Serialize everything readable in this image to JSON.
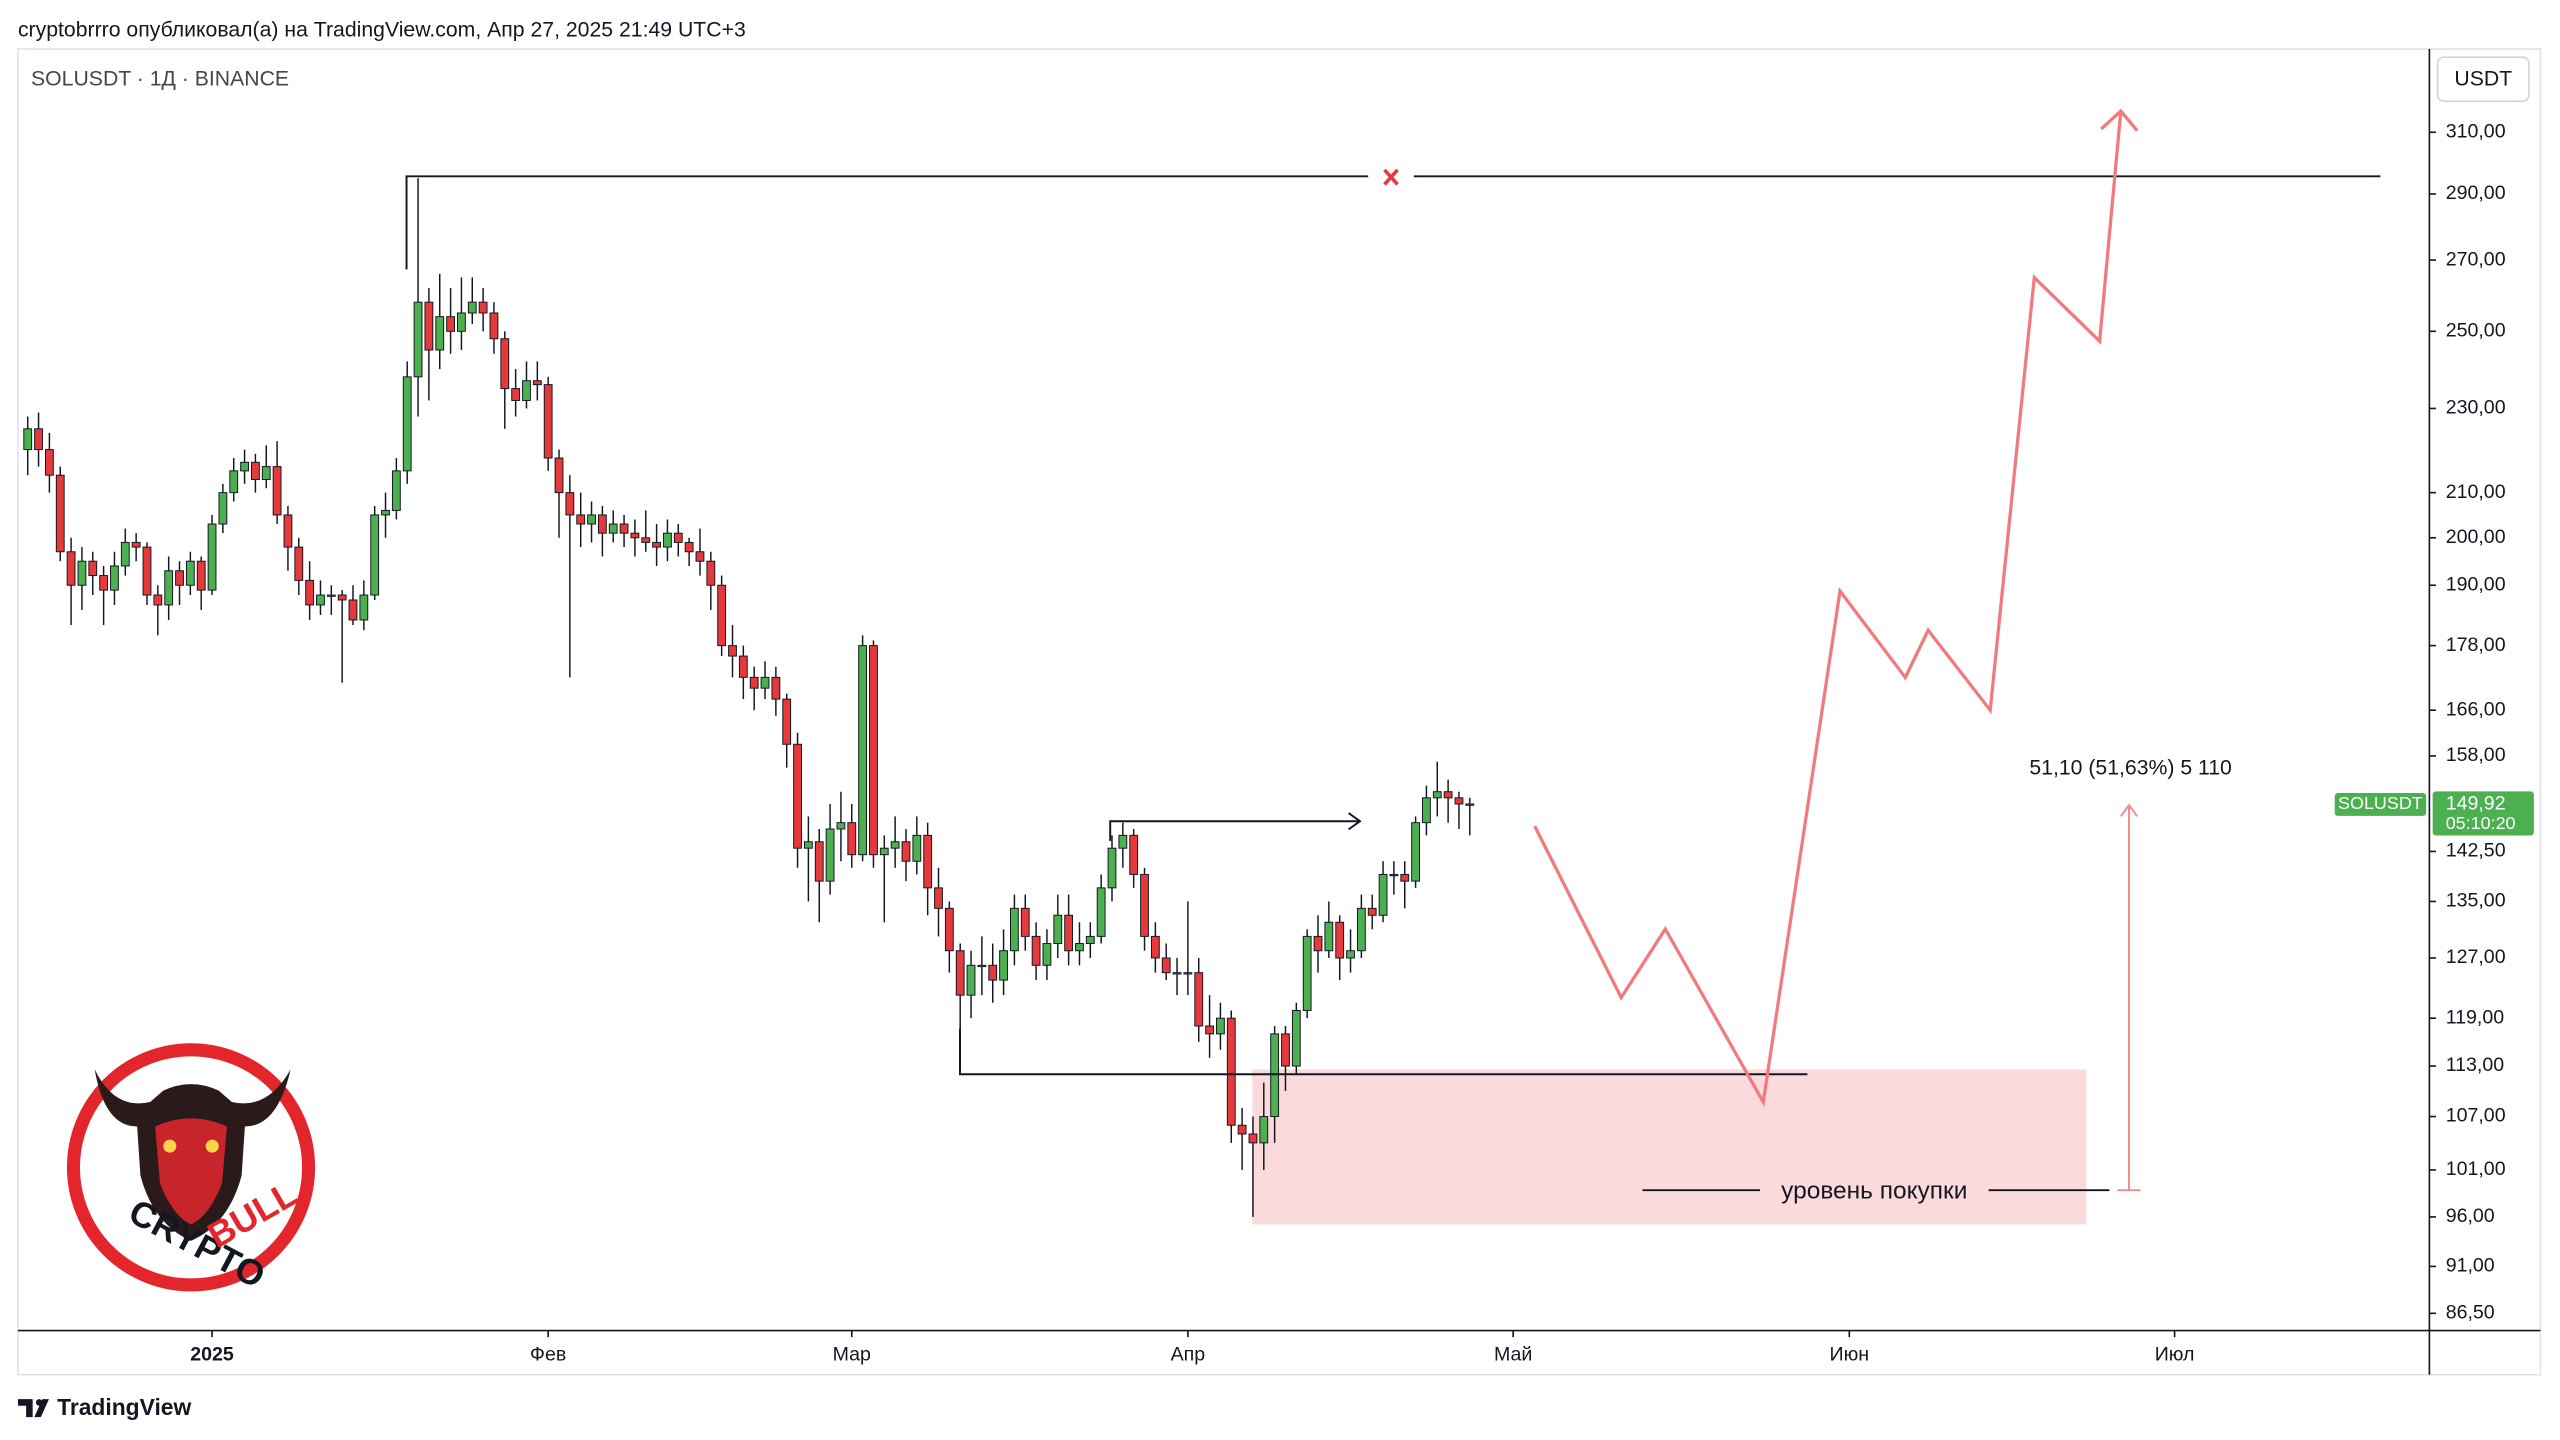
{
  "header": "cryptobrrro опубликовал(а) на TradingView.com, Апр 27, 2025 21:49 UTC+3",
  "footer": "TradingView",
  "logo": {
    "top": "CRYPTO",
    "bottom": "BULL"
  },
  "chart_data": {
    "type": "candlestick",
    "title": "SOLUSDT · 1Д · BINANCE",
    "currency": "USDT",
    "log_scale": true,
    "up_color": "#4caf50",
    "down_color": "#e5393b",
    "ylim": [
      84.9,
      339.2
    ],
    "yticks": [
      {
        "value": 310,
        "label": "310,00"
      },
      {
        "value": 290,
        "label": "290,00"
      },
      {
        "value": 270,
        "label": "270,00"
      },
      {
        "value": 250,
        "label": "250,00"
      },
      {
        "value": 230,
        "label": "230,00"
      },
      {
        "value": 210,
        "label": "210,00"
      },
      {
        "value": 200,
        "label": "200,00"
      },
      {
        "value": 190,
        "label": "190,00"
      },
      {
        "value": 178,
        "label": "178,00"
      },
      {
        "value": 166,
        "label": "166,00"
      },
      {
        "value": 158,
        "label": "158,00"
      },
      {
        "value": 142.5,
        "label": "142,50"
      },
      {
        "value": 135,
        "label": "135,00"
      },
      {
        "value": 127,
        "label": "127,00"
      },
      {
        "value": 119,
        "label": "119,00"
      },
      {
        "value": 113,
        "label": "113,00"
      },
      {
        "value": 107,
        "label": "107,00"
      },
      {
        "value": 101,
        "label": "101,00"
      },
      {
        "value": 96,
        "label": "96,00"
      },
      {
        "value": 91,
        "label": "91,00"
      },
      {
        "value": 86.5,
        "label": "86,50"
      }
    ],
    "xlim": [
      -17.9,
      204.5
    ],
    "xticks": [
      {
        "value": 0,
        "label": "2025"
      },
      {
        "value": 31,
        "label": "Фев"
      },
      {
        "value": 59,
        "label": "Мар"
      },
      {
        "value": 90,
        "label": "Апр"
      },
      {
        "value": 120,
        "label": "Май"
      },
      {
        "value": 151,
        "label": "Июн"
      },
      {
        "value": 181,
        "label": "Июл"
      }
    ],
    "x": [
      -17,
      -16,
      -15,
      -14,
      -13,
      -12,
      -11,
      -10,
      -9,
      -8,
      -7,
      -6,
      -5,
      -4,
      -3,
      -2,
      -1,
      0,
      1,
      2,
      3,
      4,
      5,
      6,
      7,
      8,
      9,
      10,
      11,
      12,
      13,
      14,
      15,
      16,
      17,
      18,
      19,
      20,
      21,
      22,
      23,
      24,
      25,
      26,
      27,
      28,
      29,
      30,
      31,
      32,
      33,
      34,
      35,
      36,
      37,
      38,
      39,
      40,
      41,
      42,
      43,
      44,
      45,
      46,
      47,
      48,
      49,
      50,
      51,
      52,
      53,
      54,
      55,
      56,
      57,
      58,
      59,
      60,
      61,
      62,
      63,
      64,
      65,
      66,
      67,
      68,
      69,
      70,
      71,
      72,
      73,
      74,
      75,
      76,
      77,
      78,
      79,
      80,
      81,
      82,
      83,
      84,
      85,
      86,
      87,
      88,
      89,
      90,
      91,
      92,
      93,
      94,
      95,
      96,
      97,
      98,
      99,
      100,
      101,
      102,
      103,
      104,
      105,
      106,
      107,
      108,
      109,
      110,
      111,
      112,
      113,
      114,
      115,
      116
    ],
    "series": [
      {
        "name": "SOLUSDT",
        "ohlc": [
          [
            220,
            228,
            214,
            225
          ],
          [
            225,
            229,
            216,
            220
          ],
          [
            220,
            224,
            210,
            214
          ],
          [
            214,
            216,
            195,
            197
          ],
          [
            197,
            200,
            182,
            190
          ],
          [
            190,
            198,
            185,
            195
          ],
          [
            195,
            197,
            188,
            192
          ],
          [
            192,
            194,
            182,
            189
          ],
          [
            189,
            197,
            186,
            194
          ],
          [
            194,
            202,
            192,
            199
          ],
          [
            199,
            201,
            195,
            198
          ],
          [
            198,
            199,
            186,
            188
          ],
          [
            188,
            190,
            180,
            186
          ],
          [
            186,
            196,
            183,
            193
          ],
          [
            193,
            195,
            186,
            190
          ],
          [
            190,
            197,
            188,
            195
          ],
          [
            195,
            196,
            185,
            189
          ],
          [
            189,
            205,
            188,
            203
          ],
          [
            203,
            212,
            201,
            210
          ],
          [
            210,
            218,
            208,
            215
          ],
          [
            215,
            220,
            212,
            217
          ],
          [
            217,
            219,
            210,
            213
          ],
          [
            213,
            221,
            211,
            216
          ],
          [
            216,
            222,
            203,
            205
          ],
          [
            205,
            207,
            193,
            198
          ],
          [
            198,
            200,
            188,
            191
          ],
          [
            191,
            195,
            183,
            186
          ],
          [
            186,
            191,
            184,
            188
          ],
          [
            188,
            190,
            184,
            188
          ],
          [
            188,
            189,
            171,
            187
          ],
          [
            187,
            190,
            182,
            183
          ],
          [
            183,
            191,
            181,
            188
          ],
          [
            188,
            207,
            187,
            205
          ],
          [
            205,
            210,
            200,
            206
          ],
          [
            206,
            218,
            204,
            215
          ],
          [
            215,
            242,
            212,
            238
          ],
          [
            238,
            295,
            228,
            258
          ],
          [
            258,
            262,
            232,
            245
          ],
          [
            245,
            266,
            240,
            254
          ],
          [
            254,
            262,
            244,
            250
          ],
          [
            250,
            265,
            245,
            255
          ],
          [
            255,
            265,
            252,
            258
          ],
          [
            258,
            262,
            250,
            255
          ],
          [
            255,
            258,
            244,
            248
          ],
          [
            248,
            250,
            225,
            235
          ],
          [
            235,
            240,
            228,
            232
          ],
          [
            232,
            242,
            230,
            237
          ],
          [
            237,
            242,
            232,
            236
          ],
          [
            236,
            238,
            215,
            218
          ],
          [
            218,
            220,
            200,
            210
          ],
          [
            210,
            214,
            172,
            205
          ],
          [
            205,
            210,
            198,
            203
          ],
          [
            203,
            208,
            199,
            205
          ],
          [
            205,
            207,
            196,
            201
          ],
          [
            201,
            206,
            199,
            203
          ],
          [
            203,
            205,
            198,
            201
          ],
          [
            201,
            204,
            196,
            200
          ],
          [
            200,
            206,
            197,
            199
          ],
          [
            199,
            203,
            194,
            198
          ],
          [
            198,
            204,
            195,
            201
          ],
          [
            201,
            203,
            196,
            199
          ],
          [
            199,
            200,
            194,
            197
          ],
          [
            197,
            202,
            192,
            195
          ],
          [
            195,
            197,
            185,
            190
          ],
          [
            190,
            192,
            176,
            178
          ],
          [
            178,
            182,
            172,
            176
          ],
          [
            176,
            178,
            168,
            172
          ],
          [
            172,
            174,
            166,
            170
          ],
          [
            170,
            175,
            168,
            172
          ],
          [
            172,
            174,
            165,
            168
          ],
          [
            168,
            169,
            156,
            160
          ],
          [
            160,
            162,
            140,
            143
          ],
          [
            143,
            148,
            135,
            144
          ],
          [
            144,
            146,
            132,
            138
          ],
          [
            138,
            150,
            136,
            146
          ],
          [
            146,
            152,
            141,
            147
          ],
          [
            147,
            150,
            140,
            142
          ],
          [
            142,
            180,
            141,
            178
          ],
          [
            178,
            179,
            140,
            142
          ],
          [
            142,
            145,
            132,
            143
          ],
          [
            143,
            148,
            140,
            144
          ],
          [
            144,
            146,
            138,
            141
          ],
          [
            141,
            148,
            139,
            145
          ],
          [
            145,
            147,
            133,
            137
          ],
          [
            137,
            140,
            130,
            134
          ],
          [
            134,
            135,
            125,
            128
          ],
          [
            128,
            129,
            113,
            122
          ],
          [
            122,
            128,
            119,
            126
          ],
          [
            126,
            130,
            122,
            126
          ],
          [
            126,
            129,
            121,
            124
          ],
          [
            124,
            131,
            122,
            128
          ],
          [
            128,
            136,
            126,
            134
          ],
          [
            134,
            136,
            128,
            130
          ],
          [
            130,
            132,
            124,
            126
          ],
          [
            126,
            131,
            124,
            129
          ],
          [
            129,
            136,
            127,
            133
          ],
          [
            133,
            136,
            126,
            128
          ],
          [
            128,
            132,
            126,
            129
          ],
          [
            129,
            132,
            127,
            130
          ],
          [
            130,
            139,
            129,
            137
          ],
          [
            137,
            145,
            135,
            143
          ],
          [
            143,
            147,
            140,
            145
          ],
          [
            145,
            146,
            137,
            139
          ],
          [
            139,
            140,
            128,
            130
          ],
          [
            130,
            132,
            125,
            127
          ],
          [
            127,
            129,
            124,
            125
          ],
          [
            125,
            127,
            122,
            125
          ],
          [
            125,
            135,
            122,
            125
          ],
          [
            125,
            127,
            116,
            118
          ],
          [
            118,
            122,
            114,
            117
          ],
          [
            117,
            121,
            115,
            119
          ],
          [
            119,
            120,
            104,
            106
          ],
          [
            106,
            108,
            101,
            105
          ],
          [
            105,
            107,
            96,
            104
          ],
          [
            104,
            111,
            101,
            107
          ],
          [
            107,
            118,
            104,
            117
          ],
          [
            117,
            118,
            110,
            113
          ],
          [
            113,
            121,
            112,
            120
          ],
          [
            120,
            131,
            119,
            130
          ],
          [
            130,
            133,
            125,
            128
          ],
          [
            128,
            135,
            127,
            132
          ],
          [
            132,
            133,
            124,
            127
          ],
          [
            127,
            131,
            125,
            128
          ],
          [
            128,
            136,
            127,
            134
          ],
          [
            134,
            136,
            131,
            133
          ],
          [
            133,
            141,
            132,
            139
          ],
          [
            139,
            141,
            136,
            139
          ],
          [
            139,
            141,
            134,
            138
          ],
          [
            138,
            148,
            137,
            147
          ],
          [
            147,
            153,
            145,
            151
          ],
          [
            151,
            157,
            148,
            152
          ],
          [
            152,
            154,
            147,
            151
          ],
          [
            151,
            152,
            146,
            150
          ],
          [
            150,
            151,
            145,
            149.92
          ]
        ]
      }
    ],
    "last_price": {
      "value": 149.92,
      "label": "149,92"
    },
    "countdown": "05:10:20",
    "annotations": {
      "measure": "51,10 (51,63%) 5 110",
      "buy_level": "уровень покупки"
    }
  }
}
